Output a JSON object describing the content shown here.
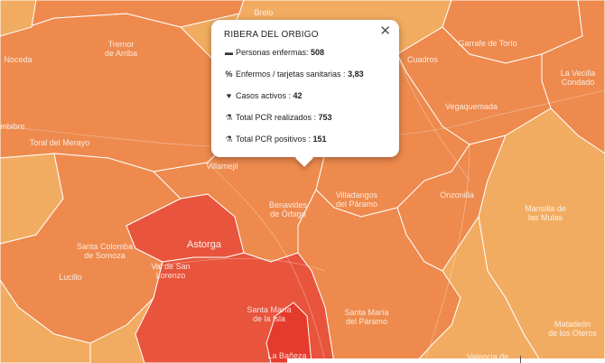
{
  "popup": {
    "title": "RIBERA DEL ORBIGO",
    "close_icon": "close-icon",
    "rows": [
      {
        "icon": "bed-icon",
        "glyph": "🛏",
        "label": "Personas enfermas: ",
        "value": "508"
      },
      {
        "icon": "percent-icon",
        "glyph": "%",
        "label": "Enfermos / tarjetas sanitarias : ",
        "value": "3,83"
      },
      {
        "icon": "heartbeat-icon",
        "glyph": "♥",
        "label": "Casos activos : ",
        "value": "42"
      },
      {
        "icon": "flask-icon",
        "glyph": "⚗",
        "label": "Total PCR realizados : ",
        "value": "753"
      },
      {
        "icon": "flask-icon",
        "glyph": "⚗",
        "label": "Total PCR positivos : ",
        "value": "151"
      }
    ]
  },
  "places": {
    "brelo": "Brelo",
    "tremor": "Tremor\nde Arriba",
    "noceda": "Noceda",
    "cuadros": "Cuadros",
    "garrafe": "Garrafe de Torío",
    "vecilla": "La Vecilla\nCondado",
    "ambibre": "mbibre",
    "toral": "Toral del Merayo",
    "villamejil": "Villamejil",
    "vegaquemada": "Vegaquemada",
    "benavides": "Benavides\nde Órbigo",
    "villadangos": "Villadangos\ndel Páramo",
    "onzonilla": "Onzonilla",
    "mansilla": "Mansilla de\nlas Mulas",
    "astorga": "Astorga",
    "santa_colomba": "Santa Colomba\nde Somoza",
    "val_san_lorenzo": "Val de San\nLorenzo",
    "lucillo": "Lucillo",
    "santa_maria_isla": "Santa María\nde la Isla",
    "santa_maria_paramo": "Santa María\ndel Páramo",
    "matadeon": "Matadeón\nde los Oteros",
    "la_baneza": "La Bañeza",
    "valencia": "Valencia de"
  },
  "colors": {
    "light": "#f2ac61",
    "medium": "#ee8a4d",
    "medium_dark": "#ea7a46",
    "dark": "#e8553c",
    "darkest": "#e53b2c",
    "border": "#ffffff"
  }
}
